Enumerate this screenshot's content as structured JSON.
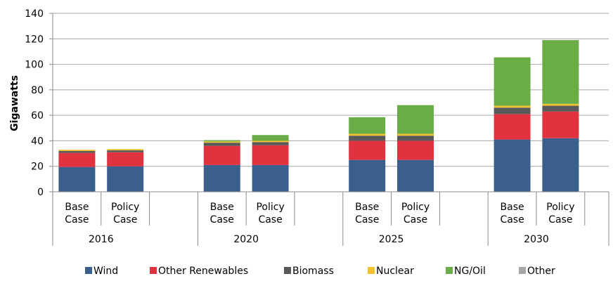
{
  "chart_data": {
    "type": "bar",
    "stacked": true,
    "ylabel": "Gigawatts",
    "ylim": [
      0,
      140
    ],
    "yticks": [
      0,
      20,
      40,
      60,
      80,
      100,
      120,
      140
    ],
    "grid": true,
    "legend_position": "bottom",
    "groups": [
      {
        "label": "2016",
        "categories": [
          "Base\nCase",
          "Policy\nCase"
        ]
      },
      {
        "label": "2020",
        "categories": [
          "Base\nCase",
          "Policy\nCase"
        ]
      },
      {
        "label": "2025",
        "categories": [
          "Base\nCase",
          "Policy\nCase"
        ]
      },
      {
        "label": "2030",
        "categories": [
          "Base\nCase",
          "Policy\nCase"
        ]
      }
    ],
    "series": [
      {
        "name": "Wind",
        "color": "#3a5f8d",
        "values": [
          19.5,
          20,
          21,
          21,
          25,
          25,
          41,
          42
        ]
      },
      {
        "name": "Other Renewables",
        "color": "#e0323f",
        "values": [
          11,
          11,
          15,
          15.5,
          15,
          15,
          20,
          21
        ]
      },
      {
        "name": "Biomass",
        "color": "#595959",
        "values": [
          1.5,
          1.5,
          2.5,
          2.5,
          4,
          4,
          5,
          4.5
        ]
      },
      {
        "name": "Nuclear",
        "color": "#f2c12e",
        "values": [
          1,
          1,
          1,
          1,
          1.5,
          1.5,
          1.5,
          1.5
        ]
      },
      {
        "name": "NG/Oil",
        "color": "#6aac46",
        "values": [
          0,
          0,
          1,
          4.5,
          13,
          22.5,
          38,
          50
        ]
      },
      {
        "name": "Other",
        "color": "#a6a6a6",
        "values": [
          0,
          0,
          0,
          0,
          0,
          0,
          0,
          0
        ]
      }
    ]
  }
}
